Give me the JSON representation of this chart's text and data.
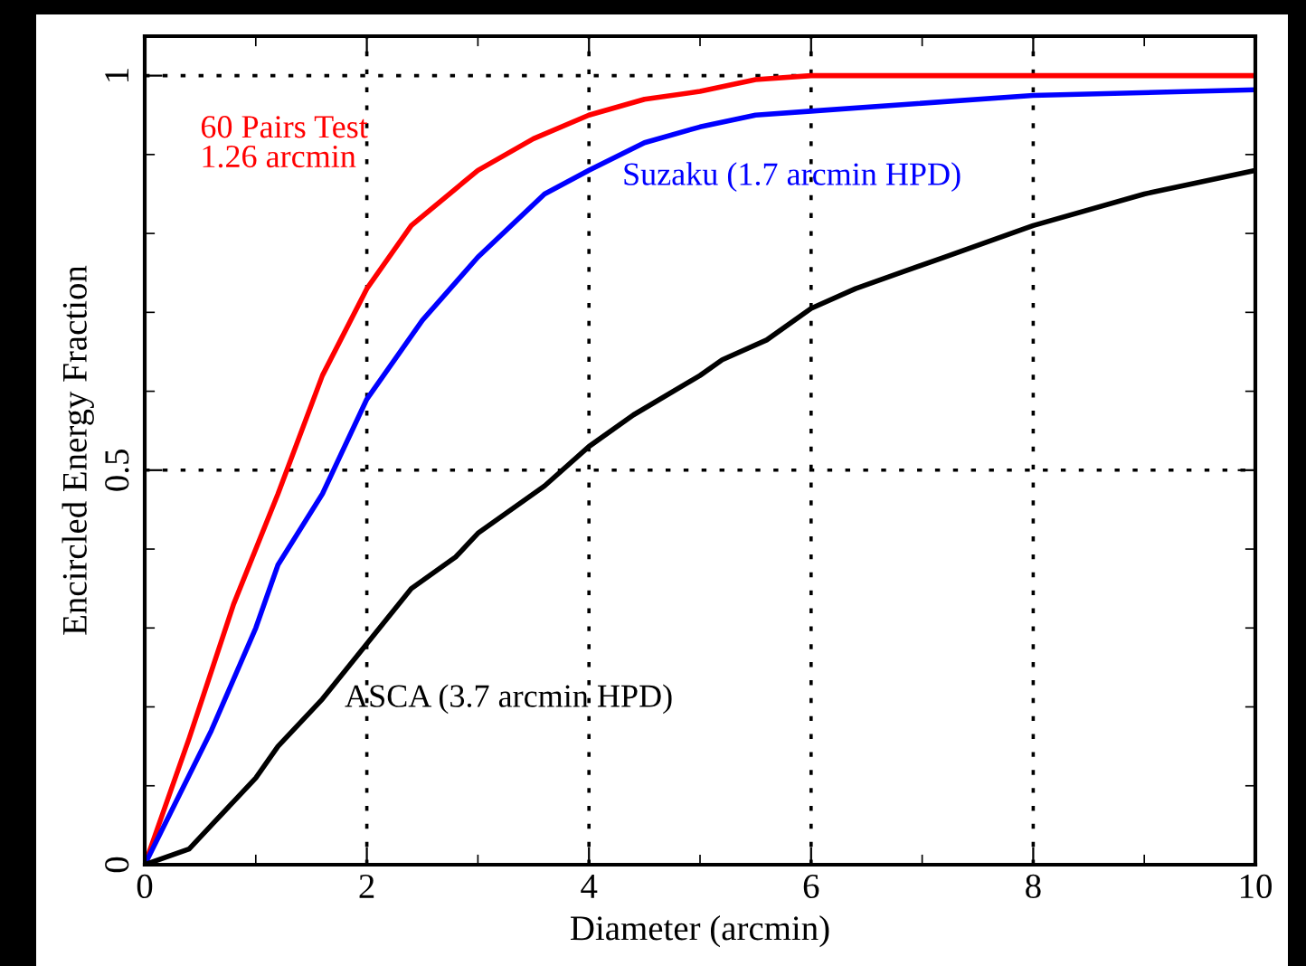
{
  "chart_data": {
    "type": "line",
    "xlabel": "Diameter (arcmin)",
    "ylabel": "Encircled Energy Fraction",
    "xlim": [
      0,
      10
    ],
    "ylim": [
      0,
      1.05
    ],
    "xticks": [
      0,
      {
        "value": 1,
        "label": null
      },
      2,
      {
        "value": 3,
        "label": null
      },
      4,
      {
        "value": 5,
        "label": null
      },
      6,
      {
        "value": 7,
        "label": null
      },
      8,
      {
        "value": 9,
        "label": null
      },
      10
    ],
    "yticks": [
      0,
      {
        "value": 0.1,
        "label": null
      },
      {
        "value": 0.2,
        "label": null
      },
      {
        "value": 0.3,
        "label": null
      },
      {
        "value": 0.4,
        "label": null
      },
      0.5,
      {
        "value": 0.6,
        "label": null
      },
      {
        "value": 0.7,
        "label": null
      },
      {
        "value": 0.8,
        "label": null
      },
      {
        "value": 0.9,
        "label": null
      },
      1
    ],
    "grid": true,
    "legend": false,
    "marker": "none",
    "line_style": "solid",
    "series": [
      {
        "name": "60 Pairs Test\n1.26 arcmin",
        "color": "#ff0000",
        "x": [
          0,
          0.4,
          0.8,
          1.2,
          1.6,
          2,
          2.4,
          3,
          3.5,
          4,
          4.5,
          5,
          5.5,
          6,
          10
        ],
        "values": [
          0,
          0.16,
          0.33,
          0.47,
          0.62,
          0.73,
          0.81,
          0.88,
          0.92,
          0.95,
          0.97,
          0.98,
          0.995,
          1,
          1
        ]
      },
      {
        "name": "Suzaku (1.7 arcmin HPD)",
        "color": "#0000ff",
        "x": [
          0,
          0.6,
          1,
          1.2,
          1.6,
          2,
          2.5,
          3,
          3.6,
          4,
          4.5,
          5,
          5.5,
          6,
          8,
          10
        ],
        "values": [
          0,
          0.17,
          0.3,
          0.38,
          0.47,
          0.59,
          0.69,
          0.77,
          0.85,
          0.88,
          0.915,
          0.935,
          0.95,
          0.955,
          0.975,
          0.982
        ]
      },
      {
        "name": "ASCA (3.7 arcmin HPD)",
        "color": "#000000",
        "x": [
          0,
          0.4,
          0.6,
          1,
          1.2,
          1.6,
          2,
          2.4,
          2.8,
          3,
          3.6,
          4,
          4.4,
          5,
          5.2,
          5.6,
          6,
          6.4,
          6.8,
          7.2,
          8,
          9,
          10
        ],
        "values": [
          0,
          0.02,
          0.05,
          0.11,
          0.15,
          0.21,
          0.28,
          0.35,
          0.39,
          0.42,
          0.48,
          0.53,
          0.57,
          0.62,
          0.64,
          0.665,
          0.705,
          0.73,
          0.75,
          0.77,
          0.81,
          0.85,
          0.88
        ]
      }
    ]
  }
}
